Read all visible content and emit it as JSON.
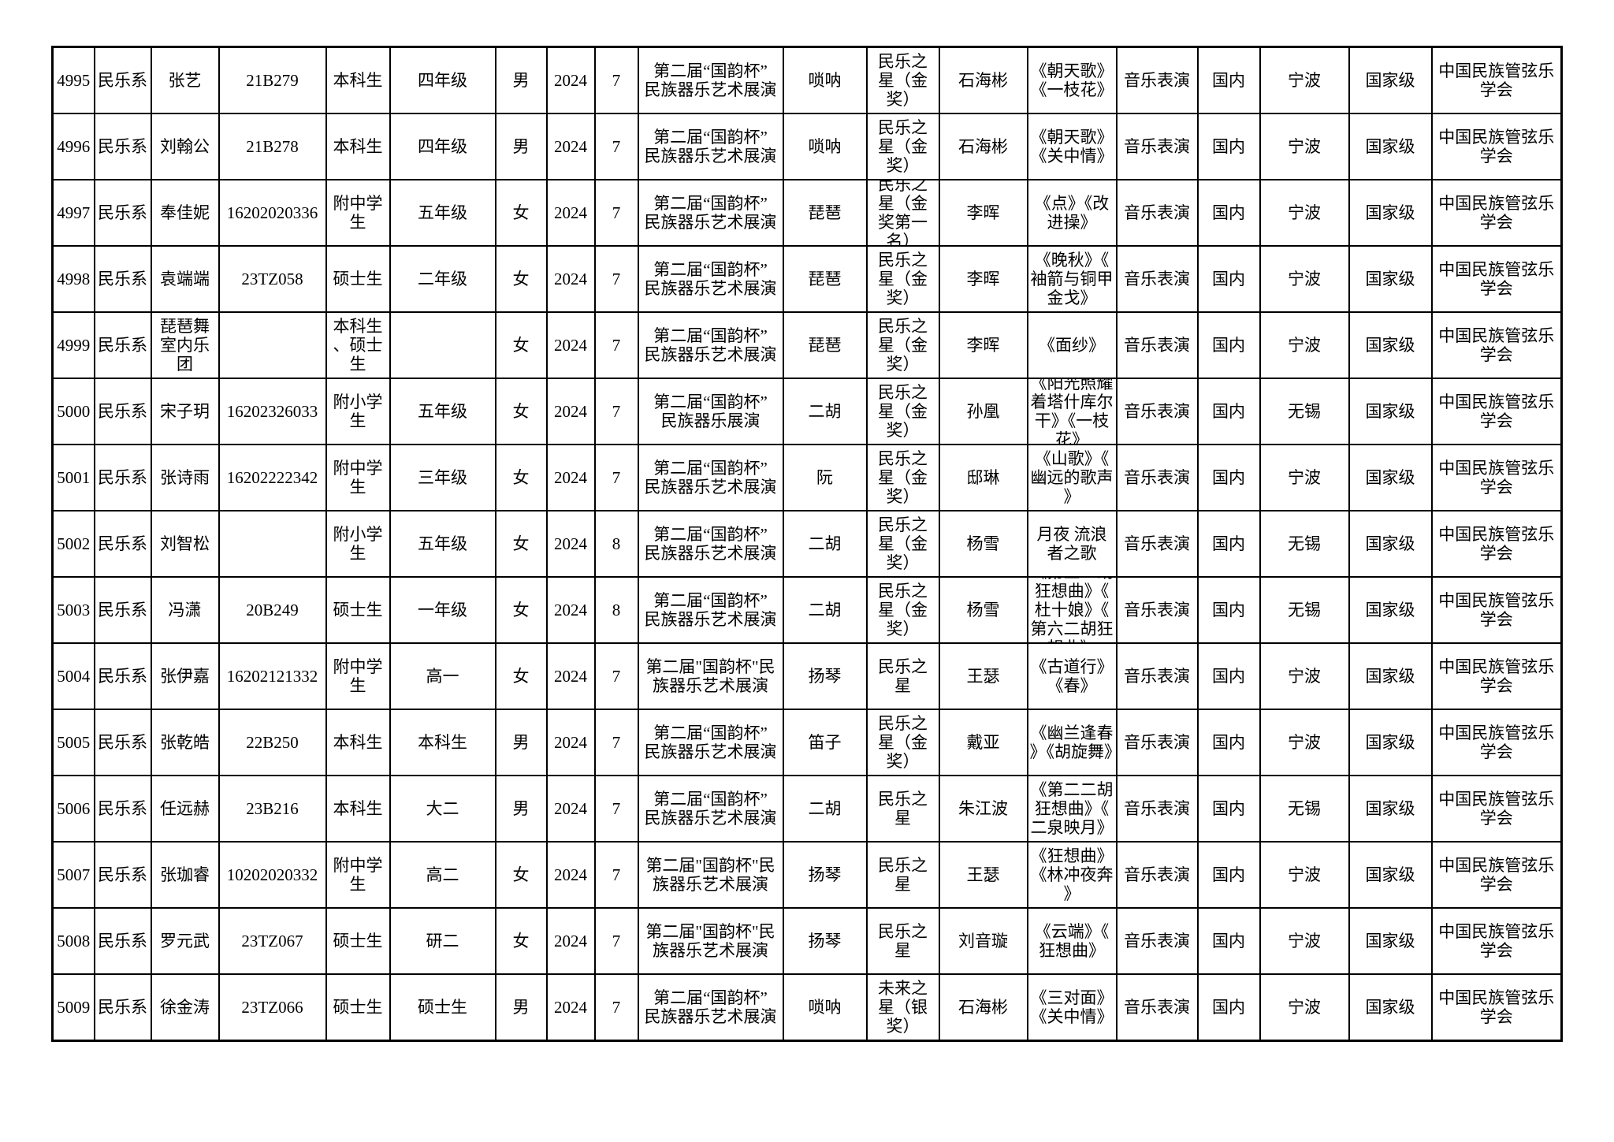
{
  "table": {
    "rows": [
      [
        "4995",
        "民乐系",
        "张艺",
        "21B279",
        "本科生",
        "四年级",
        "男",
        "2024",
        "7",
        "第二届“国韵杯”\n民族器乐艺术展演",
        "唢呐",
        "民乐之星（金奖）",
        "石海彬",
        "《朝天歌》《一枝花》",
        "音乐表演",
        "国内",
        "宁波",
        "国家级",
        "中国民族管弦乐学会"
      ],
      [
        "4996",
        "民乐系",
        "刘翰公",
        "21B278",
        "本科生",
        "四年级",
        "男",
        "2024",
        "7",
        "第二届“国韵杯”\n民族器乐艺术展演",
        "唢呐",
        "民乐之星（金奖）",
        "石海彬",
        "《朝天歌》《关中情》",
        "音乐表演",
        "国内",
        "宁波",
        "国家级",
        "中国民族管弦乐学会"
      ],
      [
        "4997",
        "民乐系",
        "奉佳妮",
        "16202020336",
        "附中学生",
        "五年级",
        "女",
        "2024",
        "7",
        "第二届“国韵杯”\n民族器乐艺术展演",
        "琵琶",
        "民乐之星（金奖第一名）",
        "李晖",
        "《点》《改进操》",
        "音乐表演",
        "国内",
        "宁波",
        "国家级",
        "中国民族管弦乐学会"
      ],
      [
        "4998",
        "民乐系",
        "袁端端",
        "23TZ058",
        "硕士生",
        "二年级",
        "女",
        "2024",
        "7",
        "第二届“国韵杯”\n民族器乐艺术展演",
        "琵琶",
        "民乐之星（金奖）",
        "李晖",
        "《晚秋》《袖箭与铜甲金戈》",
        "音乐表演",
        "国内",
        "宁波",
        "国家级",
        "中国民族管弦乐学会"
      ],
      [
        "4999",
        "民乐系",
        "琵琶舞室内乐团",
        "",
        "本科生、硕士生",
        "",
        "女",
        "2024",
        "7",
        "第二届“国韵杯”\n民族器乐艺术展演",
        "琵琶",
        "民乐之星（金奖）",
        "李晖",
        "《面纱》",
        "音乐表演",
        "国内",
        "宁波",
        "国家级",
        "中国民族管弦乐学会"
      ],
      [
        "5000",
        "民乐系",
        "宋子玥",
        "16202326033",
        "附小学生",
        "五年级",
        "女",
        "2024",
        "7",
        "第二届“国韵杯”\n民族器乐展演",
        "二胡",
        "民乐之星（金奖）",
        "孙凰",
        "《阳光照耀着塔什库尔干》《一枝花》",
        "音乐表演",
        "国内",
        "无锡",
        "国家级",
        "中国民族管弦乐学会"
      ],
      [
        "5001",
        "民乐系",
        "张诗雨",
        "16202222342",
        "附中学生",
        "三年级",
        "女",
        "2024",
        "7",
        "第二届“国韵杯”\n民族器乐艺术展演",
        "阮",
        "民乐之星（金奖）",
        "邸琳",
        "《山歌》《幽远的歌声》",
        "音乐表演",
        "国内",
        "宁波",
        "国家级",
        "中国民族管弦乐学会"
      ],
      [
        "5002",
        "民乐系",
        "刘智松",
        "",
        "附小学生",
        "五年级",
        "女",
        "2024",
        "8",
        "第二届“国韵杯”\n民族器乐艺术展演",
        "二胡",
        "民乐之星（金奖）",
        "杨雪",
        "月夜 流浪者之歌",
        "音乐表演",
        "国内",
        "无锡",
        "国家级",
        "中国民族管弦乐学会"
      ],
      [
        "5003",
        "民乐系",
        "冯潇",
        "20B249",
        "硕士生",
        "一年级",
        "女",
        "2024",
        "8",
        "第二届“国韵杯”\n民族器乐艺术展演",
        "二胡",
        "民乐之星（金奖）",
        "杨雪",
        "《第五二胡狂想曲》《杜十娘》《第六二胡狂想曲》",
        "音乐表演",
        "国内",
        "无锡",
        "国家级",
        "中国民族管弦乐学会"
      ],
      [
        "5004",
        "民乐系",
        "张伊嘉",
        "16202121332",
        "附中学生",
        "高一",
        "女",
        "2024",
        "7",
        "第二届\"国韵杯\"民\n族器乐艺术展演",
        "扬琴",
        "民乐之星",
        "王瑟",
        "《古道行》《春》",
        "音乐表演",
        "国内",
        "宁波",
        "国家级",
        "中国民族管弦乐学会"
      ],
      [
        "5005",
        "民乐系",
        "张乾皓",
        "22B250",
        "本科生",
        "本科生",
        "男",
        "2024",
        "7",
        "第二届“国韵杯”\n民族器乐艺术展演",
        "笛子",
        "民乐之星（金奖）",
        "戴亚",
        "《幽兰逢春》《胡旋舞》",
        "音乐表演",
        "国内",
        "宁波",
        "国家级",
        "中国民族管弦乐学会"
      ],
      [
        "5006",
        "民乐系",
        "任远赫",
        "23B216",
        "本科生",
        "大二",
        "男",
        "2024",
        "7",
        "第二届“国韵杯”\n民族器乐艺术展演",
        "二胡",
        "民乐之星",
        "朱江波",
        "《第二二胡狂想曲》《二泉映月》",
        "音乐表演",
        "国内",
        "无锡",
        "国家级",
        "中国民族管弦乐学会"
      ],
      [
        "5007",
        "民乐系",
        "张珈睿",
        "10202020332",
        "附中学生",
        "高二",
        "女",
        "2024",
        "7",
        "第二届\"国韵杯\"民\n族器乐艺术展演",
        "扬琴",
        "民乐之星",
        "王瑟",
        "《狂想曲》《林冲夜奔》",
        "音乐表演",
        "国内",
        "宁波",
        "国家级",
        "中国民族管弦乐学会"
      ],
      [
        "5008",
        "民乐系",
        "罗元武",
        "23TZ067",
        "硕士生",
        "研二",
        "女",
        "2024",
        "7",
        "第二届\"国韵杯\"民\n族器乐艺术展演",
        "扬琴",
        "民乐之星",
        "刘音璇",
        "《云端》《狂想曲》",
        "音乐表演",
        "国内",
        "宁波",
        "国家级",
        "中国民族管弦乐学会"
      ],
      [
        "5009",
        "民乐系",
        "徐金涛",
        "23TZ066",
        "硕士生",
        "硕士生",
        "男",
        "2024",
        "7",
        "第二届“国韵杯”\n民族器乐艺术展演",
        "唢呐",
        "未来之星（银奖）",
        "石海彬",
        "《三对面》《关中情》",
        "音乐表演",
        "国内",
        "宁波",
        "国家级",
        "中国民族管弦乐学会"
      ]
    ]
  }
}
